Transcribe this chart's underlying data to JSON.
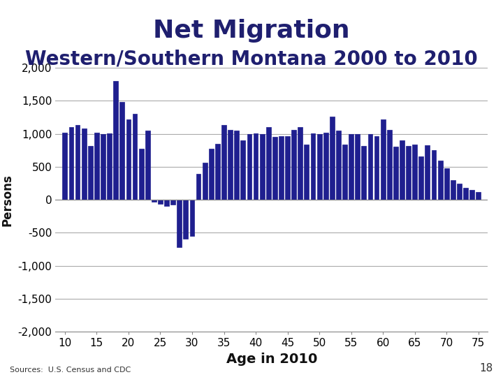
{
  "title": "Net Migration",
  "subtitle": "Western/Southern Montana 2000 to 2010",
  "xlabel": "Age in 2010",
  "ylabel": "Persons",
  "source": "Sources:  U.S. Census and CDC",
  "page_number": "18",
  "bar_color": "#1F1F8F",
  "background_color": "#FFFFFF",
  "ylim": [
    -2000,
    2000
  ],
  "yticks": [
    -2000,
    -1500,
    -1000,
    -500,
    0,
    500,
    1000,
    1500,
    2000
  ],
  "ages": [
    10,
    11,
    12,
    13,
    14,
    15,
    16,
    17,
    18,
    19,
    20,
    21,
    22,
    23,
    24,
    25,
    26,
    27,
    28,
    29,
    30,
    31,
    32,
    33,
    34,
    35,
    36,
    37,
    38,
    39,
    40,
    41,
    42,
    43,
    44,
    45,
    46,
    47,
    48,
    49,
    50,
    51,
    52,
    53,
    54,
    55,
    56,
    57,
    58,
    59,
    60,
    61,
    62,
    63,
    64,
    65,
    66,
    67,
    68,
    69,
    70,
    71,
    72,
    73,
    74,
    75
  ],
  "values": [
    1020,
    1100,
    1130,
    1080,
    820,
    1020,
    1000,
    1010,
    1800,
    1480,
    1220,
    1300,
    770,
    1050,
    -30,
    -60,
    -90,
    -70,
    -720,
    -590,
    -550,
    390,
    560,
    770,
    850,
    1130,
    1060,
    1050,
    900,
    1000,
    1010,
    1000,
    1100,
    950,
    970,
    960,
    1060,
    1100,
    840,
    1010,
    1000,
    1020,
    1260,
    1050,
    840,
    1000,
    1000,
    820,
    1000,
    960,
    1220,
    1060,
    810,
    900,
    820,
    840,
    660,
    830,
    750,
    600,
    480,
    300,
    250,
    185,
    150,
    120
  ],
  "title_fontsize": 26,
  "subtitle_fontsize": 20,
  "xlabel_fontsize": 14,
  "ylabel_fontsize": 12,
  "tick_label_fontsize": 11,
  "title_color": "#1F1F6F",
  "subtitle_color": "#1F1F6F"
}
